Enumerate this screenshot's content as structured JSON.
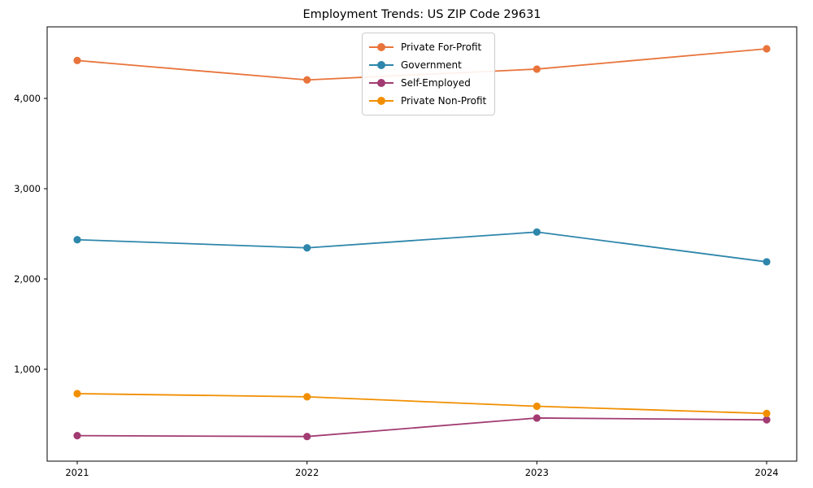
{
  "title": "Employment Trends: US ZIP Code 29631",
  "chart_data": {
    "type": "line",
    "title": "Employment Trends: US ZIP Code 29631",
    "xlabel": "",
    "ylabel": "",
    "categories": [
      "2021",
      "2022",
      "2023",
      "2024"
    ],
    "x": [
      2021,
      2022,
      2023,
      2024
    ],
    "series": [
      {
        "name": "Private For-Profit",
        "color": "#e8743b",
        "values": [
          4420,
          4205,
          4325,
          4550
        ]
      },
      {
        "name": "Government",
        "color": "#2e86ab",
        "values": [
          2435,
          2345,
          2520,
          2190
        ]
      },
      {
        "name": "Self-Employed",
        "color": "#a23b72",
        "values": [
          265,
          255,
          460,
          440
        ]
      },
      {
        "name": "Private Non-Profit",
        "color": "#f18f01",
        "values": [
          730,
          695,
          590,
          510
        ]
      }
    ],
    "yticks": [
      1000,
      2000,
      3000,
      4000
    ],
    "ytick_labels": [
      "1,000",
      "2,000",
      "3,000",
      "4,000"
    ],
    "ylim": [
      -18,
      4793
    ],
    "grid": false,
    "legend_position": "upper center",
    "marker": "o"
  }
}
